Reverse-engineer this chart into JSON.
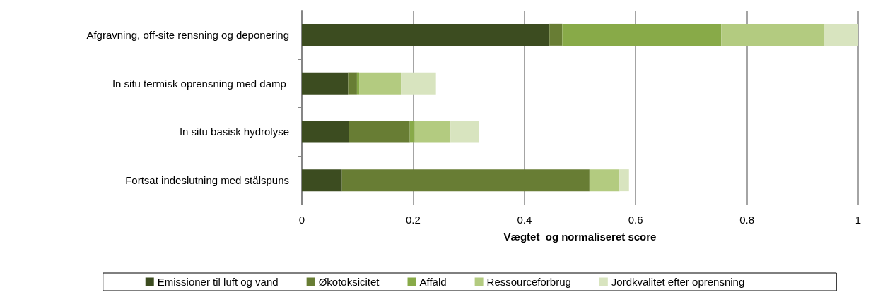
{
  "chart_data": {
    "type": "bar",
    "orientation": "horizontal",
    "stacked": true,
    "xlabel": "Vægtet  og normaliseret score",
    "categories": [
      "Afgravning, off-site rensning og deponering",
      "In situ termisk oprensning med damp ",
      "In situ basisk hydrolyse",
      "Fortsat indeslutning med stålspuns"
    ],
    "series": [
      {
        "name": "Emissioner til luft og vand",
        "color": "#3c4c20",
        "values": [
          0.445,
          0.083,
          0.084,
          0.072
        ]
      },
      {
        "name": "Økotoksicitet",
        "color": "#687d34",
        "values": [
          0.023,
          0.016,
          0.11,
          0.445
        ]
      },
      {
        "name": "Affald",
        "color": "#88aa48",
        "values": [
          0.286,
          0.004,
          0.009,
          0
        ]
      },
      {
        "name": "Ressourceforbrug",
        "color": "#b3cb80",
        "values": [
          0.184,
          0.075,
          0.064,
          0.054
        ]
      },
      {
        "name": "Jordkvalitet efter oprensning",
        "color": "#d8e4bf",
        "values": [
          0.062,
          0.063,
          0.051,
          0.017
        ]
      }
    ],
    "xlim": [
      0,
      1
    ],
    "xticks": [
      0,
      0.2,
      0.4,
      0.6,
      0.8,
      1
    ],
    "grid": "x",
    "legend": "bottom"
  }
}
